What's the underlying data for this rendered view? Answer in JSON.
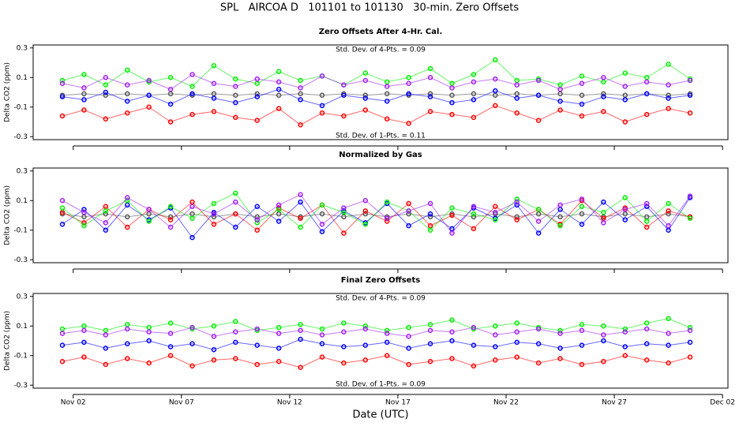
{
  "title": "SPL   AIRCOA D   101101 to 101130   30-min. Zero Offsets",
  "xlabel": "Date (UTC)",
  "chart_data": [
    {
      "type": "scatter",
      "title": "Zero Offsets After 4-Hr. Cal.",
      "ylabel": "Delta CO2 (ppm)",
      "annotations": [
        "Std. Dev. of 4-Pts. = 0.09",
        "Std. Dev. of 1-Pts. = 0.11"
      ],
      "xlim": [
        0.15,
        32.25
      ],
      "ylim": [
        -0.32,
        0.32
      ],
      "yticks": [
        -0.3,
        -0.1,
        0.1,
        0.3
      ],
      "x": [
        1.5,
        2.5,
        3.5,
        4.5,
        5.5,
        6.5,
        7.5,
        8.5,
        9.5,
        10.5,
        11.5,
        12.5,
        13.5,
        14.5,
        15.5,
        16.5,
        17.5,
        18.5,
        19.5,
        20.5,
        21.5,
        22.5,
        23.5,
        24.5,
        25.5,
        26.5,
        27.5,
        28.5,
        29.5,
        30.5
      ],
      "series": [
        {
          "color": "#555555",
          "values": [
            -0.02,
            -0.01,
            -0.02,
            -0.01,
            -0.02,
            -0.01,
            -0.02,
            -0.01,
            -0.02,
            -0.01,
            -0.02,
            -0.01,
            -0.02,
            -0.01,
            -0.02,
            -0.01,
            -0.02,
            -0.01,
            -0.02,
            -0.01,
            -0.02,
            -0.01,
            -0.02,
            -0.01,
            -0.02,
            -0.01,
            -0.02,
            -0.01,
            -0.02,
            -0.01
          ]
        },
        {
          "color": "#ff0000",
          "values": [
            -0.16,
            -0.12,
            -0.18,
            -0.14,
            -0.1,
            -0.2,
            -0.15,
            -0.13,
            -0.17,
            -0.19,
            -0.11,
            -0.22,
            -0.14,
            -0.16,
            -0.12,
            -0.18,
            -0.21,
            -0.13,
            -0.15,
            -0.17,
            -0.09,
            -0.14,
            -0.19,
            -0.12,
            -0.16,
            -0.13,
            -0.2,
            -0.15,
            -0.11,
            -0.14
          ]
        },
        {
          "color": "#0000ff",
          "values": [
            -0.03,
            -0.05,
            0.0,
            -0.06,
            -0.02,
            -0.08,
            -0.01,
            -0.04,
            -0.07,
            -0.03,
            0.02,
            -0.05,
            -0.09,
            -0.02,
            -0.04,
            -0.06,
            -0.01,
            -0.03,
            -0.07,
            -0.05,
            0.01,
            -0.04,
            -0.02,
            -0.06,
            -0.08,
            -0.03,
            -0.05,
            -0.01,
            -0.04,
            -0.02
          ]
        },
        {
          "color": "#00ee00",
          "values": [
            0.08,
            0.12,
            0.05,
            0.15,
            0.07,
            0.1,
            0.04,
            0.18,
            0.09,
            0.06,
            0.14,
            0.08,
            0.11,
            0.05,
            0.13,
            0.07,
            0.1,
            0.16,
            0.06,
            0.12,
            0.22,
            0.08,
            0.09,
            0.05,
            0.11,
            0.07,
            0.13,
            0.1,
            0.19,
            0.09
          ]
        },
        {
          "color": "#a020f0",
          "values": [
            0.06,
            0.03,
            0.1,
            0.05,
            0.08,
            0.02,
            0.12,
            0.06,
            0.04,
            0.09,
            0.07,
            0.03,
            0.11,
            0.05,
            0.08,
            0.04,
            0.06,
            0.1,
            0.03,
            0.07,
            0.09,
            0.05,
            0.08,
            0.02,
            0.06,
            0.1,
            0.04,
            0.07,
            0.05,
            0.08
          ]
        }
      ]
    },
    {
      "type": "scatter",
      "title": "Normalized by Gas",
      "ylabel": "Delta CO2 (ppm)",
      "xlim": [
        0.15,
        32.25
      ],
      "ylim": [
        -0.32,
        0.32
      ],
      "yticks": [
        -0.3,
        -0.1,
        0.1,
        0.3
      ],
      "x": [
        1.5,
        2.5,
        3.5,
        4.5,
        5.5,
        6.5,
        7.5,
        8.5,
        9.5,
        10.5,
        11.5,
        12.5,
        13.5,
        14.5,
        15.5,
        16.5,
        17.5,
        18.5,
        19.5,
        20.5,
        21.5,
        22.5,
        23.5,
        24.5,
        25.5,
        26.5,
        27.5,
        28.5,
        29.5,
        30.5
      ],
      "series": [
        {
          "color": "#555555",
          "values": [
            0.01,
            -0.01,
            0.01,
            -0.01,
            0.01,
            -0.01,
            0.01,
            -0.01,
            0.01,
            -0.01,
            0.01,
            -0.01,
            0.01,
            -0.01,
            0.01,
            -0.01,
            0.01,
            -0.01,
            0.01,
            -0.01,
            0.01,
            -0.01,
            0.01,
            -0.01,
            0.01,
            -0.01,
            0.01,
            -0.01,
            0.01,
            -0.01
          ]
        },
        {
          "color": "#ff0000",
          "values": [
            0.02,
            -0.05,
            0.06,
            -0.08,
            0.04,
            -0.03,
            0.09,
            -0.06,
            0.01,
            -0.1,
            0.05,
            -0.02,
            0.07,
            -0.12,
            0.03,
            -0.04,
            0.08,
            -0.07,
            0.0,
            -0.09,
            0.06,
            -0.03,
            0.04,
            -0.06,
            0.1,
            -0.02,
            0.05,
            -0.08,
            0.03,
            -0.01
          ]
        },
        {
          "color": "#0000ff",
          "values": [
            -0.06,
            0.04,
            -0.1,
            0.07,
            -0.03,
            0.05,
            -0.15,
            0.02,
            -0.08,
            0.06,
            -0.04,
            0.09,
            -0.11,
            0.03,
            -0.05,
            0.08,
            -0.07,
            0.01,
            -0.09,
            0.05,
            -0.02,
            0.07,
            -0.12,
            0.04,
            -0.06,
            0.09,
            -0.03,
            0.06,
            -0.1,
            0.12
          ]
        },
        {
          "color": "#00ee00",
          "values": [
            0.05,
            -0.07,
            0.03,
            0.1,
            -0.04,
            0.06,
            -0.02,
            0.08,
            0.15,
            -0.05,
            0.04,
            -0.08,
            0.07,
            0.02,
            -0.06,
            0.09,
            0.03,
            -0.1,
            0.05,
            0.01,
            -0.03,
            0.11,
            0.04,
            -0.07,
            0.06,
            0.02,
            0.12,
            -0.04,
            0.08,
            -0.02
          ]
        },
        {
          "color": "#a020f0",
          "values": [
            0.1,
            0.02,
            -0.05,
            0.12,
            0.04,
            -0.08,
            0.06,
            0.01,
            0.09,
            -0.03,
            0.07,
            0.14,
            -0.06,
            0.05,
            0.1,
            -0.02,
            0.03,
            0.08,
            -0.12,
            0.06,
            0.02,
            0.09,
            -0.04,
            0.07,
            0.11,
            -0.05,
            0.04,
            0.08,
            -0.07,
            0.13
          ]
        }
      ]
    },
    {
      "type": "scatter",
      "title": "Final Zero Offsets",
      "ylabel": "Delta CO2 (ppm)",
      "annotations": [
        "Std. Dev. of 4-Pts. = 0.09",
        "Std. Dev. of 1-Pts. = 0.09"
      ],
      "xlim": [
        0.15,
        32.25
      ],
      "ylim": [
        -0.32,
        0.32
      ],
      "yticks": [
        -0.3,
        -0.1,
        0.1,
        0.3
      ],
      "xticks": [
        {
          "value": 2,
          "label": "Nov 02"
        },
        {
          "value": 7,
          "label": "Nov 07"
        },
        {
          "value": 12,
          "label": "Nov 12"
        },
        {
          "value": 17,
          "label": "Nov 17"
        },
        {
          "value": 22,
          "label": "Nov 22"
        },
        {
          "value": 27,
          "label": "Nov 27"
        },
        {
          "value": 32,
          "label": "Dec 02"
        }
      ],
      "x": [
        1.5,
        2.5,
        3.5,
        4.5,
        5.5,
        6.5,
        7.5,
        8.5,
        9.5,
        10.5,
        11.5,
        12.5,
        13.5,
        14.5,
        15.5,
        16.5,
        17.5,
        18.5,
        19.5,
        20.5,
        21.5,
        22.5,
        23.5,
        24.5,
        25.5,
        26.5,
        27.5,
        28.5,
        29.5,
        30.5
      ],
      "series": [
        {
          "color": "#ff0000",
          "values": [
            -0.14,
            -0.11,
            -0.16,
            -0.12,
            -0.15,
            -0.1,
            -0.17,
            -0.13,
            -0.12,
            -0.16,
            -0.14,
            -0.18,
            -0.11,
            -0.15,
            -0.13,
            -0.1,
            -0.16,
            -0.14,
            -0.12,
            -0.17,
            -0.13,
            -0.11,
            -0.15,
            -0.12,
            -0.16,
            -0.14,
            -0.1,
            -0.13,
            -0.15,
            -0.11
          ]
        },
        {
          "color": "#0000ff",
          "values": [
            -0.03,
            -0.01,
            -0.05,
            -0.02,
            0.0,
            -0.04,
            -0.02,
            -0.06,
            -0.01,
            -0.03,
            -0.05,
            0.01,
            -0.02,
            -0.04,
            -0.03,
            -0.01,
            -0.05,
            -0.02,
            0.0,
            -0.03,
            -0.04,
            -0.01,
            -0.02,
            -0.05,
            -0.03,
            0.0,
            -0.04,
            -0.02,
            -0.03,
            -0.01
          ]
        },
        {
          "color": "#00ee00",
          "values": [
            0.08,
            0.1,
            0.07,
            0.11,
            0.09,
            0.12,
            0.08,
            0.1,
            0.13,
            0.07,
            0.09,
            0.11,
            0.08,
            0.12,
            0.1,
            0.07,
            0.09,
            0.11,
            0.14,
            0.08,
            0.1,
            0.12,
            0.09,
            0.07,
            0.11,
            0.1,
            0.08,
            0.12,
            0.15,
            0.09
          ]
        },
        {
          "color": "#a020f0",
          "values": [
            0.05,
            0.07,
            0.04,
            0.08,
            0.06,
            0.05,
            0.09,
            0.03,
            0.06,
            0.08,
            0.05,
            0.07,
            0.04,
            0.06,
            0.08,
            0.05,
            0.03,
            0.07,
            0.06,
            0.09,
            0.04,
            0.06,
            0.08,
            0.05,
            0.07,
            0.04,
            0.06,
            0.08,
            0.05,
            0.07
          ]
        }
      ]
    }
  ]
}
